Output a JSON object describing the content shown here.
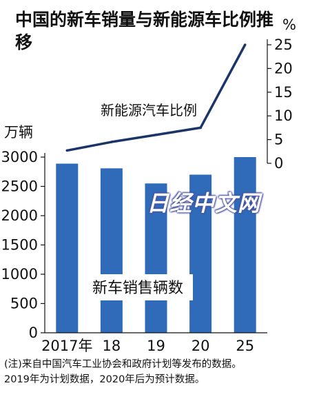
{
  "title": "中国的新车销量与新能源车比例推移",
  "left_unit": "万辆",
  "right_unit": "%",
  "watermark": "日经中文网",
  "footnote_lines": [
    "(注)来自中国汽车工业协会和政府计划等发布的数据。",
    "2019年为计划数据，2020年后为预计数据。"
  ],
  "colors": {
    "bar": "#2f6bb9",
    "line": "#1c3568",
    "text": "#111111"
  },
  "chart_data": {
    "type": "bar",
    "title": "中国的新车销量与新能源车比例推移",
    "categories": [
      "2017年",
      "18",
      "19",
      "20",
      "25"
    ],
    "series": [
      {
        "name": "新车销售辆数",
        "kind": "bar",
        "axis": "left",
        "values": [
          2888,
          2808,
          2550,
          2700,
          3000
        ]
      },
      {
        "name": "新能源汽车比例",
        "kind": "line",
        "axis": "right",
        "values": [
          2.7,
          4.5,
          6,
          7.5,
          25
        ]
      }
    ],
    "ylim_left": [
      0,
      3000
    ],
    "yticks_left": [
      0,
      500,
      1000,
      1500,
      2000,
      2500,
      3000
    ],
    "ylim_right": [
      0,
      25
    ],
    "yticks_right": [
      0,
      5,
      10,
      15,
      20,
      25
    ],
    "ylabel_left": "万辆",
    "ylabel_right": "%",
    "grid": false
  }
}
